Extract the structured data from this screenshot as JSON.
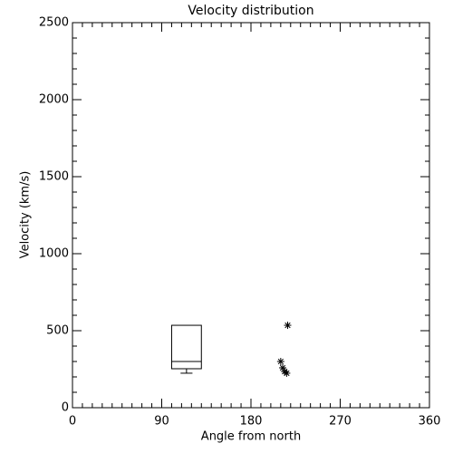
{
  "chart_data": {
    "type": "box",
    "title": "Velocity distribution",
    "xlabel": "Angle from north",
    "ylabel": "Velocity (km/s)",
    "xlim": [
      0,
      360
    ],
    "xticks": [
      0,
      90,
      180,
      270,
      360
    ],
    "ylim": [
      0,
      2500
    ],
    "yticks": [
      0,
      500,
      1000,
      1500,
      2000,
      2500
    ],
    "color": "#000000",
    "boxes": [
      {
        "x0": 100,
        "x1": 130,
        "min": 224,
        "q1": 253,
        "median": 300,
        "q3": 535,
        "max": 535
      }
    ],
    "overlay": {
      "type": "scatter",
      "x": [
        217,
        210,
        212,
        214,
        216
      ],
      "values": [
        535,
        300,
        259,
        235,
        224
      ]
    }
  }
}
